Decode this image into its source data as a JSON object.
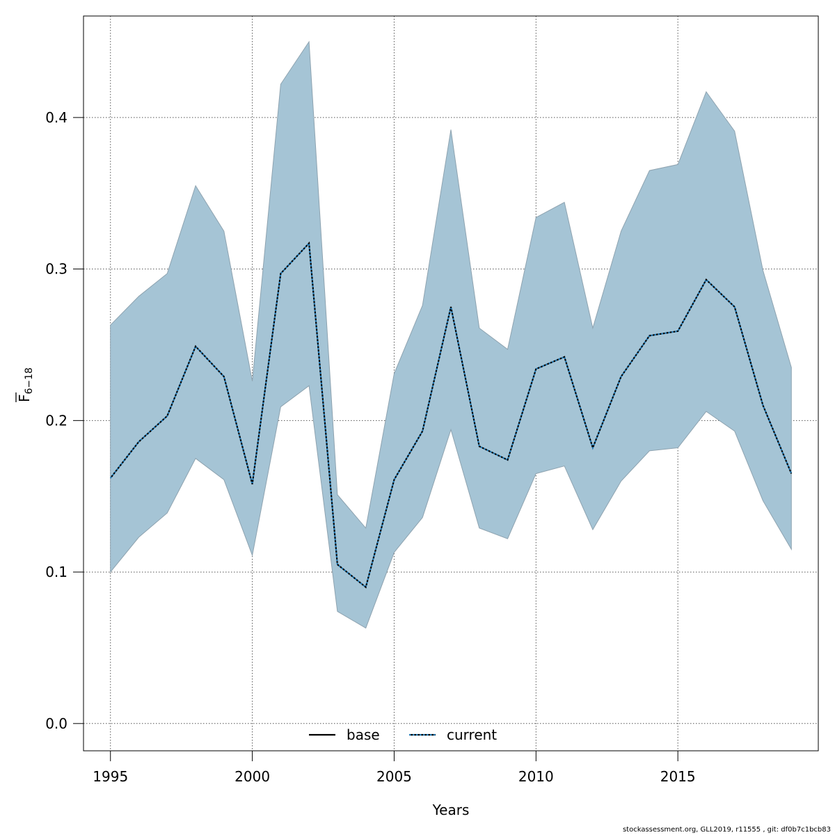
{
  "chart_data": {
    "type": "line",
    "title": "",
    "xlabel": "Years",
    "ylabel": {
      "main": "F",
      "subscript": "6−18"
    },
    "x": [
      1995,
      1996,
      1997,
      1998,
      1999,
      2000,
      2001,
      2002,
      2003,
      2004,
      2005,
      2006,
      2007,
      2008,
      2009,
      2010,
      2011,
      2012,
      2013,
      2014,
      2015,
      2016,
      2017,
      2018,
      2019
    ],
    "xlim": [
      1994.05,
      2019.95
    ],
    "ylim": [
      -0.018,
      0.467
    ],
    "xticks": [
      1995,
      2000,
      2005,
      2010,
      2015
    ],
    "yticks": [
      0.0,
      0.1,
      0.2,
      0.3,
      0.4
    ],
    "ytick_labels": [
      "0.0",
      "0.1",
      "0.2",
      "0.3",
      "0.4"
    ],
    "grid": true,
    "band": {
      "color": "#a5c4d5",
      "edge_color": "#8ea3b0",
      "lower": [
        0.1,
        0.123,
        0.139,
        0.175,
        0.161,
        0.111,
        0.209,
        0.223,
        0.074,
        0.063,
        0.113,
        0.136,
        0.194,
        0.129,
        0.122,
        0.165,
        0.17,
        0.128,
        0.16,
        0.18,
        0.182,
        0.206,
        0.193,
        0.147,
        0.115
      ],
      "upper": [
        0.263,
        0.282,
        0.297,
        0.355,
        0.325,
        0.226,
        0.422,
        0.45,
        0.151,
        0.129,
        0.231,
        0.276,
        0.392,
        0.261,
        0.247,
        0.334,
        0.344,
        0.261,
        0.325,
        0.365,
        0.369,
        0.417,
        0.391,
        0.299,
        0.235
      ]
    },
    "series": [
      {
        "name": "base",
        "style": "solid",
        "color": "#000000",
        "values": [
          0.162,
          0.186,
          0.203,
          0.249,
          0.229,
          0.158,
          0.297,
          0.317,
          0.105,
          0.09,
          0.161,
          0.193,
          0.275,
          0.183,
          0.174,
          0.234,
          0.242,
          0.182,
          0.229,
          0.256,
          0.259,
          0.293,
          0.275,
          0.21,
          0.165
        ]
      },
      {
        "name": "current",
        "style": "dotted",
        "color": "#1f78b4",
        "values": [
          0.162,
          0.186,
          0.203,
          0.249,
          0.229,
          0.158,
          0.297,
          0.317,
          0.105,
          0.09,
          0.161,
          0.193,
          0.275,
          0.183,
          0.174,
          0.234,
          0.242,
          0.182,
          0.229,
          0.256,
          0.259,
          0.293,
          0.275,
          0.21,
          0.165
        ]
      }
    ],
    "legend": {
      "placement": "bottom-center",
      "entries": [
        "base",
        "current"
      ]
    }
  },
  "footer": "stockassessment.org, GLL2019, r11555 , git: df0b7c1bcb83"
}
